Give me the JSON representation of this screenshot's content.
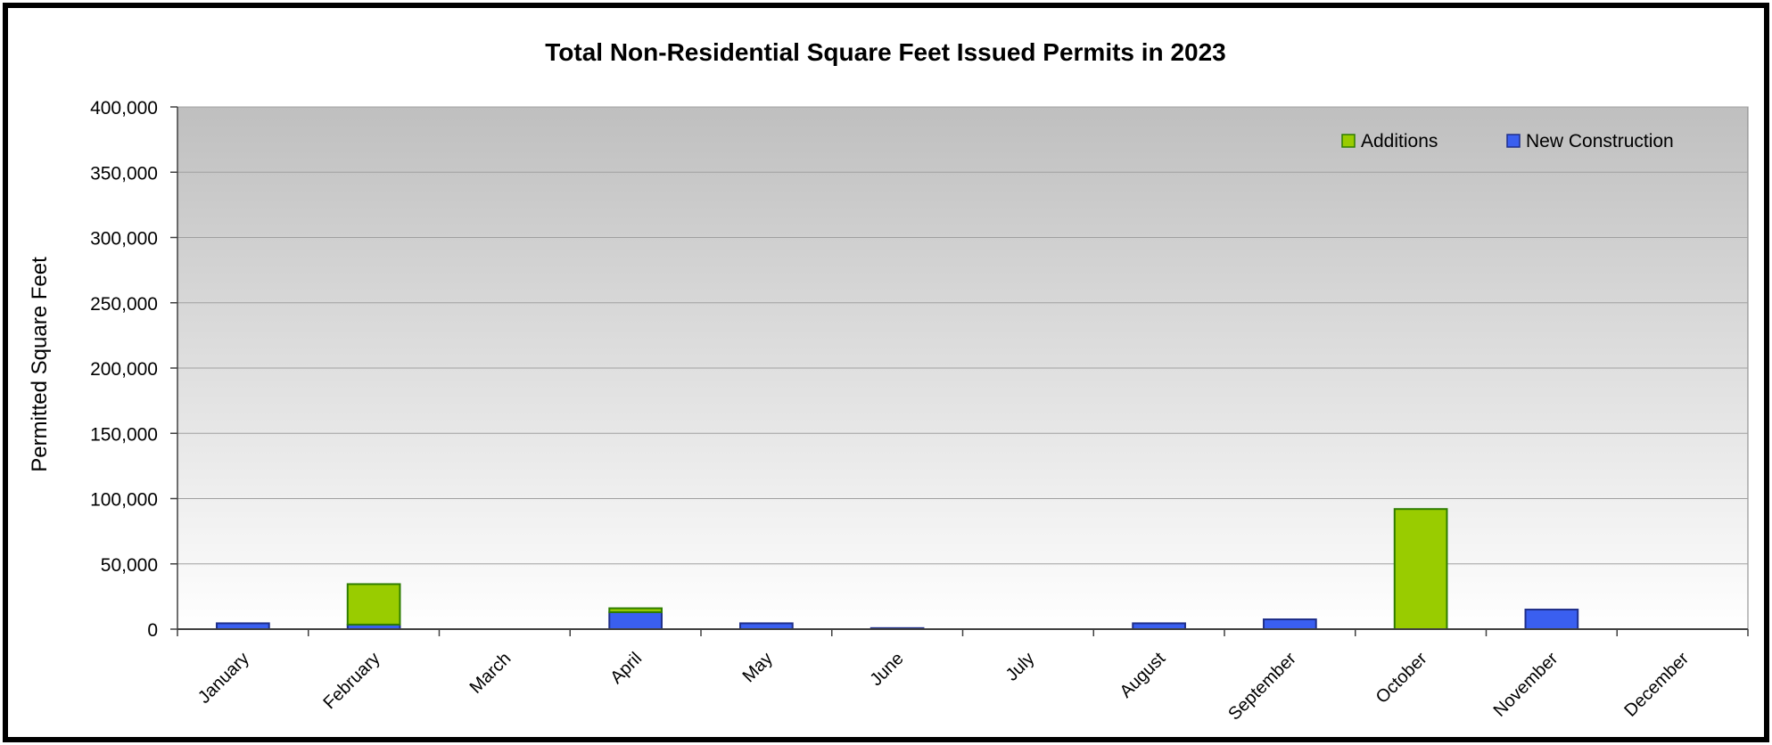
{
  "chart_data": {
    "type": "bar",
    "stacked": true,
    "title": "Total Non-Residential Square Feet Issued Permits in 2023",
    "xlabel": "",
    "ylabel": "Permitted Square Feet",
    "ylim": [
      0,
      400000
    ],
    "yticks": [
      "0",
      "50,000",
      "100,000",
      "150,000",
      "200,000",
      "250,000",
      "300,000",
      "350,000",
      "400,000"
    ],
    "ytick_values": [
      0,
      50000,
      100000,
      150000,
      200000,
      250000,
      300000,
      350000,
      400000
    ],
    "categories": [
      "January",
      "February",
      "March",
      "April",
      "May",
      "June",
      "July",
      "August",
      "September",
      "October",
      "November",
      "December"
    ],
    "series": [
      {
        "name": "New Construction",
        "color": "#3a5ff0",
        "stroke": "#1f2f8a",
        "values": [
          4500,
          3500,
          0,
          13000,
          4500,
          800,
          0,
          4500,
          7500,
          0,
          15000,
          0
        ]
      },
      {
        "name": "Additions",
        "color": "#99cc00",
        "stroke": "#2e7d00",
        "values": [
          0,
          31000,
          0,
          3000,
          0,
          0,
          0,
          0,
          0,
          92000,
          0,
          0
        ]
      }
    ],
    "legend": {
      "position": "top-right",
      "order": [
        "Additions",
        "New Construction"
      ]
    },
    "grid": true,
    "background_gradient": [
      "#bfbfbf",
      "#ffffff"
    ]
  }
}
